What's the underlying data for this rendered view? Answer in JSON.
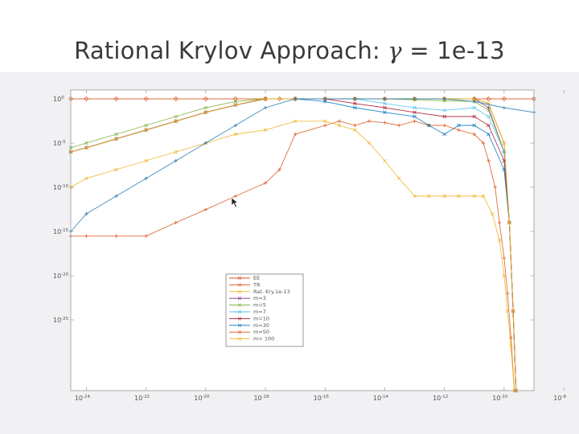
{
  "slide": {
    "title_text": "Rational Krylov Approach: ",
    "title_symbol": "γ",
    "title_value": " = 1e-13"
  },
  "chart_data": {
    "type": "line",
    "xscale": "log",
    "yscale": "log",
    "xlim": [
      3e-25,
      1e-09
    ],
    "ylim": [
      1e-33,
      10.0
    ],
    "grid": false,
    "legend_placement": "center-left",
    "x_ticks": [
      {
        "base": "10",
        "exp": "-24",
        "value": 1e-24
      },
      {
        "base": "10",
        "exp": "-22",
        "value": 1e-22
      },
      {
        "base": "10",
        "exp": "-20",
        "value": 1e-20
      },
      {
        "base": "10",
        "exp": "-18",
        "value": 1e-18
      },
      {
        "base": "10",
        "exp": "-16",
        "value": 1e-16
      },
      {
        "base": "10",
        "exp": "-14",
        "value": 1e-14
      },
      {
        "base": "10",
        "exp": "-12",
        "value": 1e-12
      },
      {
        "base": "10",
        "exp": "-10",
        "value": 1e-10
      },
      {
        "base": "10",
        "exp": "-8",
        "value": 1e-08
      }
    ],
    "y_ticks": [
      {
        "base": "10",
        "exp": "0",
        "value": 1
      },
      {
        "base": "10",
        "exp": "-5",
        "value": 1e-05
      },
      {
        "base": "10",
        "exp": "-10",
        "value": 1e-10
      },
      {
        "base": "10",
        "exp": "-15",
        "value": 1e-15
      },
      {
        "base": "10",
        "exp": "-20",
        "value": 1e-20
      },
      {
        "base": "10",
        "exp": "-25",
        "value": 1e-25
      }
    ],
    "series": [
      {
        "name": "EE",
        "color": "#d95319",
        "marker": "diamond",
        "x": [
          3e-25,
          1e-24,
          1e-23,
          1e-22,
          1e-21,
          1e-20,
          1e-19,
          1e-18,
          3e-18,
          1e-17,
          1e-16,
          1e-15,
          1e-14,
          1e-13,
          1e-12,
          1e-11,
          3e-11,
          1e-10,
          1e-09
        ],
        "y": [
          1,
          1,
          1,
          1,
          1,
          1,
          1,
          1,
          1,
          1,
          1,
          1,
          1,
          1,
          1,
          1,
          1,
          1,
          1
        ]
      },
      {
        "name": "TR",
        "color": "#d95319",
        "marker": "plus",
        "x": [
          3e-25,
          1e-24,
          1e-23,
          1e-22,
          1e-21,
          1e-20,
          1e-19,
          1e-18,
          3e-18,
          1e-17,
          1e-16,
          3e-16,
          1e-15,
          3e-15,
          1e-14,
          3e-14,
          1e-13,
          3e-13,
          1e-12,
          3e-12,
          1e-11,
          2e-11,
          3e-11,
          5e-11,
          7e-11,
          1e-10,
          1.3e-10,
          1.7e-10,
          2.2e-10
        ],
        "y": [
          3e-16,
          3e-16,
          3e-16,
          3e-16,
          1e-14,
          3e-13,
          1e-11,
          3e-10,
          1e-08,
          0.0001,
          0.001,
          0.003,
          0.001,
          0.003,
          0.002,
          0.001,
          0.003,
          0.001,
          0.001,
          0.0003,
          0.0001,
          1e-05,
          1e-07,
          1e-10,
          1e-14,
          1e-18,
          1e-22,
          1e-27,
          1e-33
        ]
      },
      {
        "name": "Rat. Kry.1e-13",
        "color": "#edb120",
        "marker": "cross",
        "x": [
          3e-25,
          1e-24,
          1e-23,
          1e-22,
          1e-21,
          1e-20,
          1e-19,
          1e-18,
          1e-17,
          1e-16,
          3e-16,
          1e-15,
          3e-15,
          1e-14,
          3e-14,
          1e-13,
          3e-13,
          1e-12,
          3e-12,
          1e-11,
          2e-11,
          4e-11,
          7e-11,
          1e-10,
          1.3e-10,
          1.7e-10,
          2.2e-10
        ],
        "y": [
          1e-10,
          1e-09,
          1e-08,
          1e-07,
          1e-06,
          1e-05,
          0.0001,
          0.0003,
          0.003,
          0.003,
          0.001,
          0.0003,
          1e-05,
          1e-07,
          1e-09,
          1e-11,
          1e-11,
          1e-11,
          1e-11,
          1e-11,
          1e-11,
          1e-13,
          1e-16,
          1e-20,
          1e-24,
          1e-28,
          1e-33
        ]
      },
      {
        "name": "m=3",
        "color": "#7e2f8e",
        "marker": "plus",
        "x": [
          3e-25,
          1e-24,
          1e-23,
          1e-22,
          1e-21,
          1e-20,
          1e-19,
          1e-18,
          1e-17,
          1e-16,
          1e-15,
          1e-14,
          1e-13,
          1e-12,
          1e-11,
          3e-11,
          1e-10,
          1.5e-10,
          2e-10,
          2.5e-10
        ],
        "y": [
          1e-06,
          3e-06,
          3e-05,
          0.0003,
          0.003,
          0.03,
          0.2,
          1,
          1,
          1,
          1,
          1,
          1,
          1,
          1,
          0.1,
          1e-06,
          1e-14,
          1e-24,
          1e-33
        ]
      },
      {
        "name": "m=5",
        "color": "#77ac30",
        "marker": "cross",
        "x": [
          3e-25,
          1e-24,
          1e-23,
          1e-22,
          1e-21,
          1e-20,
          1e-19,
          1e-18,
          1e-17,
          1e-16,
          1e-15,
          1e-14,
          1e-13,
          1e-12,
          1e-11,
          3e-11,
          1e-10,
          1.5e-10,
          2e-10,
          2.5e-10
        ],
        "y": [
          3e-06,
          1e-05,
          0.0001,
          0.001,
          0.01,
          0.1,
          0.5,
          1,
          1,
          1,
          1,
          1,
          0.8,
          0.6,
          0.5,
          0.05,
          1e-06,
          1e-14,
          1e-24,
          1e-33
        ]
      },
      {
        "name": "m=7",
        "color": "#4dbeee",
        "marker": "cross",
        "x": [
          3e-25,
          1e-24,
          1e-23,
          1e-22,
          1e-21,
          1e-20,
          1e-19,
          1e-18,
          1e-17,
          1e-16,
          1e-15,
          1e-14,
          1e-13,
          1e-12,
          1e-11,
          3e-11,
          1e-10,
          1.5e-10,
          2e-10,
          2.5e-10
        ],
        "y": [
          1e-06,
          3e-06,
          3e-05,
          0.0003,
          0.003,
          0.03,
          0.2,
          1,
          1,
          1,
          1,
          0.3,
          0.1,
          0.05,
          0.1,
          0.01,
          1e-06,
          1e-14,
          1e-24,
          1e-33
        ]
      },
      {
        "name": "m=10",
        "color": "#a2142f",
        "marker": "cross",
        "x": [
          3e-25,
          1e-24,
          1e-23,
          1e-22,
          1e-21,
          1e-20,
          1e-19,
          1e-18,
          1e-17,
          1e-16,
          1e-15,
          1e-14,
          1e-13,
          1e-12,
          1e-11,
          3e-11,
          1e-10,
          1.5e-10,
          2e-10,
          2.5e-10
        ],
        "y": [
          1e-06,
          3e-06,
          3e-05,
          0.0003,
          0.003,
          0.03,
          0.2,
          1,
          1,
          1,
          0.3,
          0.1,
          0.03,
          0.01,
          0.01,
          0.001,
          1e-07,
          1e-14,
          1e-24,
          1e-33
        ]
      },
      {
        "name": "m=30",
        "color": "#0072bd",
        "marker": "cross",
        "x": [
          3e-25,
          1e-24,
          1e-23,
          1e-22,
          1e-21,
          1e-20,
          1e-19,
          1e-18,
          1e-17,
          1e-16,
          1e-15,
          1e-14,
          1e-13,
          3e-13,
          1e-12,
          3e-12,
          1e-11,
          3e-11,
          1e-10,
          1.5e-10,
          2e-10,
          2.5e-10
        ],
        "y": [
          1e-06,
          3e-06,
          3e-05,
          0.0003,
          0.003,
          0.03,
          0.2,
          1,
          1,
          0.5,
          0.1,
          0.03,
          0.01,
          0.001,
          0.0001,
          0.001,
          0.001,
          0.0001,
          1e-08,
          1e-14,
          1e-24,
          1e-33
        ]
      },
      {
        "name": "m=50",
        "color": "#d95319",
        "marker": "cross",
        "x": [
          3e-25,
          1e-24,
          1e-23,
          1e-22,
          1e-21,
          1e-20,
          1e-19,
          1e-18,
          1e-17,
          1e-16,
          1e-15,
          1e-14,
          1e-13,
          1e-12,
          1e-11,
          3e-11,
          1e-10,
          1.5e-10,
          2e-10,
          2.5e-10
        ],
        "y": [
          1e-06,
          3e-06,
          3e-05,
          0.0003,
          0.003,
          0.03,
          0.2,
          1,
          1,
          1,
          1,
          1,
          1,
          1,
          1,
          0.3,
          1e-05,
          1e-14,
          1e-24,
          1e-33
        ]
      },
      {
        "name": "m= 100",
        "color": "#edb120",
        "marker": "cross",
        "x": [
          3e-25,
          1e-24,
          1e-23,
          1e-22,
          1e-21,
          1e-20,
          1e-19,
          1e-18,
          1e-17,
          1e-16,
          1e-15,
          1e-14,
          1e-13,
          1e-12,
          1e-11,
          3e-11,
          1e-10,
          1.5e-10,
          2e-10,
          2.5e-10
        ],
        "y": [
          1e-06,
          3e-06,
          3e-05,
          0.0003,
          0.003,
          0.03,
          0.2,
          1,
          1,
          1,
          1,
          1,
          1,
          1,
          1,
          0.3,
          1e-05,
          1e-14,
          1e-24,
          1e-33
        ]
      },
      {
        "name": "",
        "color": "#1f77b4",
        "marker": "plus",
        "x": [
          3e-25,
          1e-24,
          1e-23,
          1e-22,
          1e-21,
          1e-20,
          1e-19,
          1e-18,
          1e-17,
          1e-16,
          1e-15,
          1e-14,
          1e-13,
          1e-12,
          1e-11,
          1e-10,
          1e-09
        ],
        "y": [
          1e-15,
          1e-13,
          1e-11,
          1e-09,
          1e-07,
          1e-05,
          0.001,
          0.1,
          1,
          1,
          1,
          1,
          1,
          1,
          0.5,
          0.1,
          0.03
        ]
      }
    ]
  }
}
